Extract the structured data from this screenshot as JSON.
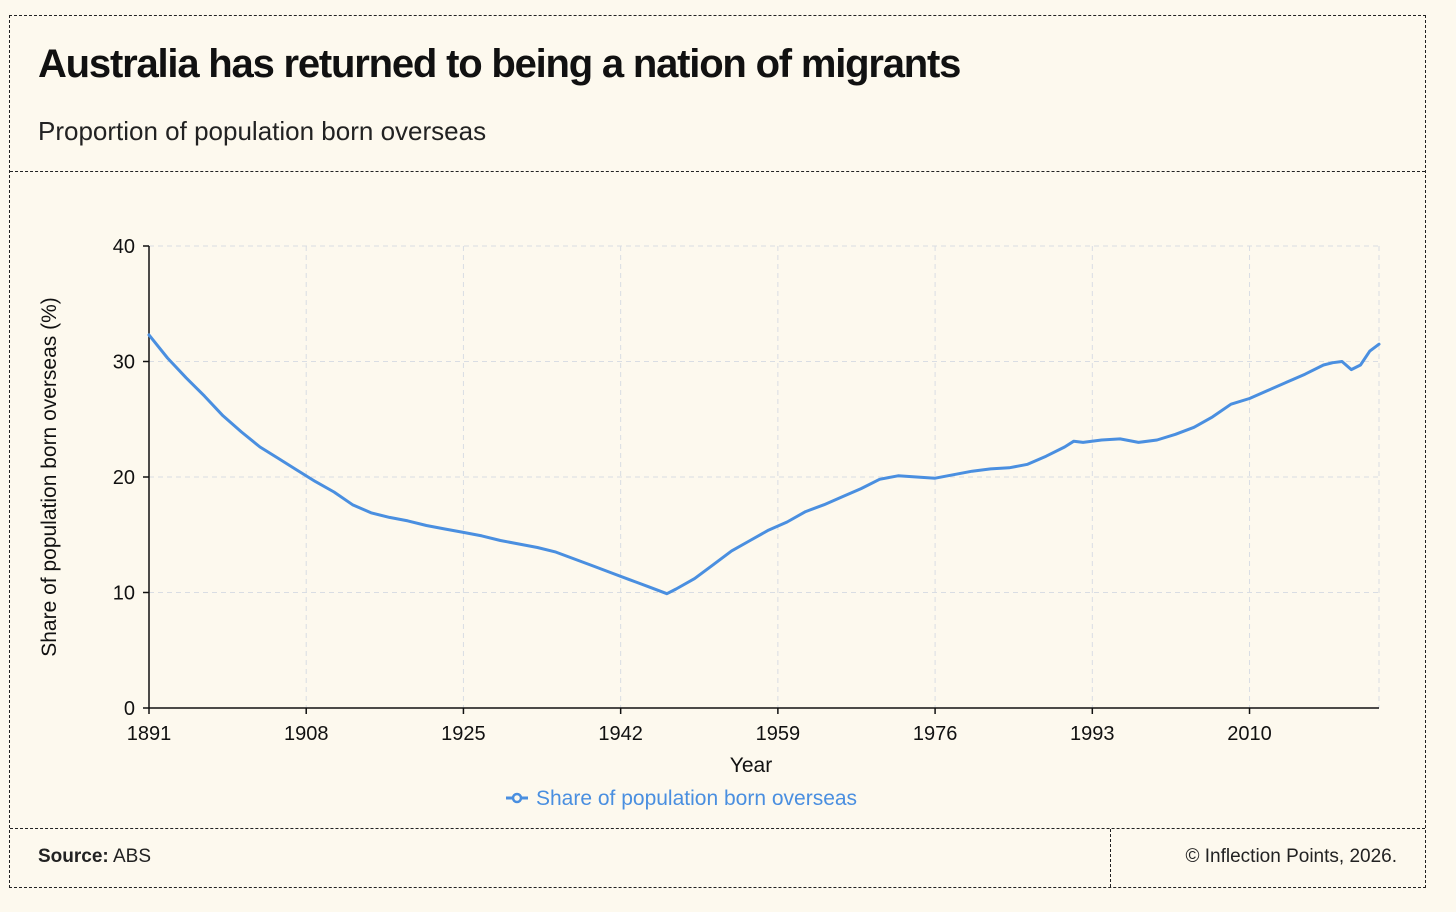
{
  "header": {
    "title": "Australia has returned to being a nation of migrants",
    "subtitle": "Proportion of population born overseas"
  },
  "footer": {
    "source_label": "Source:",
    "source_value": "ABS",
    "copyright": "© Inflection Points, 2026."
  },
  "colors": {
    "line": "#4a8fe0",
    "grid": "#d9dde3",
    "axis": "#111111",
    "background": "#fdf9ee"
  },
  "chart_data": {
    "type": "line",
    "title": "Australia has returned to being a nation of migrants",
    "subtitle": "Proportion of population born overseas",
    "xlabel": "Year",
    "ylabel": "Share of population born overseas (%)",
    "xlim": [
      1891,
      2024
    ],
    "ylim": [
      0,
      40
    ],
    "x_ticks": [
      1891,
      1908,
      1925,
      1942,
      1959,
      1976,
      1993,
      2010
    ],
    "y_ticks": [
      0,
      10,
      20,
      30,
      40
    ],
    "grid": true,
    "legend": "bottom-center",
    "series": [
      {
        "name": "Share of population born overseas",
        "x": [
          1891,
          1893,
          1895,
          1897,
          1899,
          1901,
          1903,
          1905,
          1907,
          1909,
          1911,
          1913,
          1915,
          1917,
          1919,
          1921,
          1923,
          1925,
          1927,
          1929,
          1931,
          1933,
          1935,
          1937,
          1939,
          1941,
          1943,
          1945,
          1947,
          1948,
          1950,
          1952,
          1954,
          1956,
          1958,
          1960,
          1962,
          1964,
          1966,
          1968,
          1970,
          1972,
          1974,
          1976,
          1978,
          1980,
          1982,
          1984,
          1986,
          1988,
          1990,
          1991,
          1992,
          1994,
          1996,
          1998,
          2000,
          2002,
          2004,
          2006,
          2008,
          2010,
          2012,
          2014,
          2016,
          2018,
          2019,
          2020,
          2021,
          2022,
          2023,
          2024
        ],
        "values": [
          32.3,
          30.3,
          28.6,
          27.0,
          25.3,
          23.9,
          22.6,
          21.6,
          20.6,
          19.6,
          18.7,
          17.6,
          16.9,
          16.5,
          16.2,
          15.8,
          15.5,
          15.2,
          14.9,
          14.5,
          14.2,
          13.9,
          13.5,
          12.9,
          12.3,
          11.7,
          11.1,
          10.5,
          9.9,
          10.3,
          11.2,
          12.4,
          13.6,
          14.5,
          15.4,
          16.1,
          17.0,
          17.6,
          18.3,
          19.0,
          19.8,
          20.1,
          20.0,
          19.9,
          20.2,
          20.5,
          20.7,
          20.8,
          21.1,
          21.8,
          22.6,
          23.1,
          23.0,
          23.2,
          23.3,
          23.0,
          23.2,
          23.7,
          24.3,
          25.2,
          26.3,
          26.8,
          27.5,
          28.2,
          28.9,
          29.7,
          29.9,
          30.0,
          29.3,
          29.7,
          30.9,
          31.5
        ]
      }
    ]
  }
}
